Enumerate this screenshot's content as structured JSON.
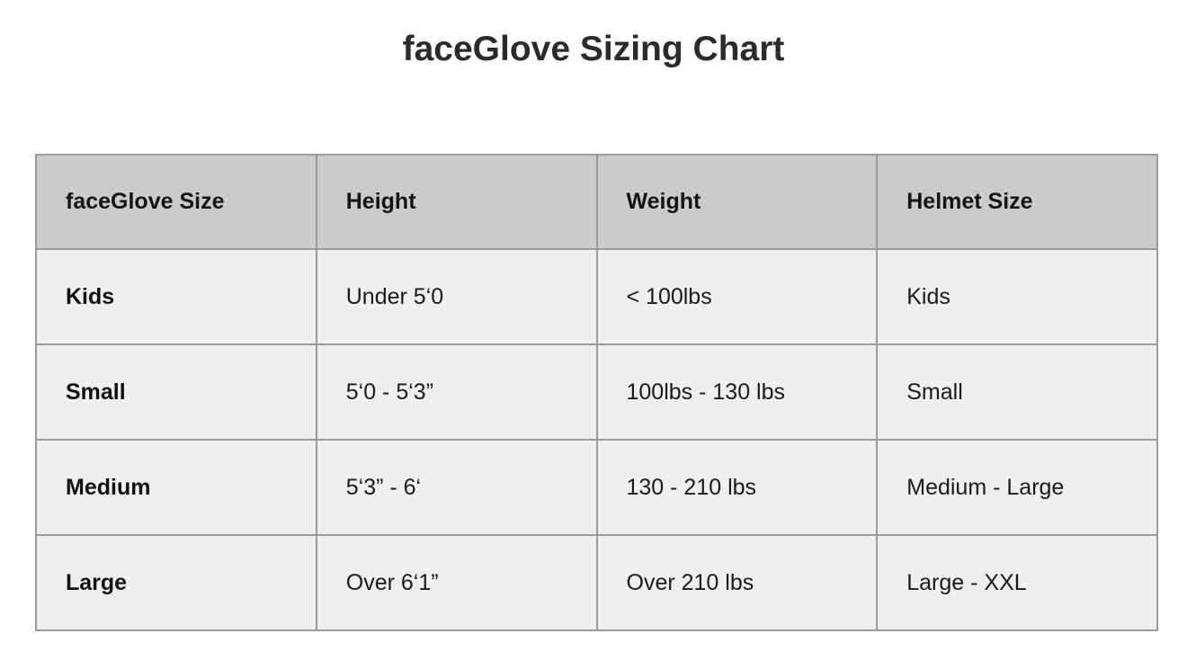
{
  "page": {
    "title": "faceGlove Sizing Chart"
  },
  "table": {
    "columns": [
      "faceGlove Size",
      "Height",
      "Weight",
      "Helmet Size"
    ],
    "rows": [
      [
        "Kids",
        "Under 5‘0",
        "< 100lbs",
        "Kids"
      ],
      [
        "Small",
        "5‘0 - 5‘3”",
        "100lbs - 130 lbs",
        "Small"
      ],
      [
        "Medium",
        "5‘3” - 6‘",
        "130 - 210 lbs",
        "Medium - Large"
      ],
      [
        "Large",
        "Over 6‘1”",
        "Over 210 lbs",
        "Large - XXL"
      ]
    ]
  },
  "colors": {
    "header_bg": "#cbcbcb",
    "row_bg": "#efefef",
    "border": "#9b9b9b",
    "title_text": "#2b2b2b",
    "body_text": "#1a1a1a"
  }
}
